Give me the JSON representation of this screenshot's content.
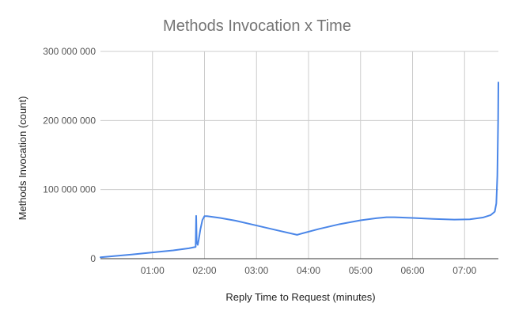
{
  "chart_data": {
    "type": "line",
    "title": "Methods Invocation x Time",
    "xlabel": "Reply Time to Request (minutes)",
    "ylabel": "Methods Invocation (count)",
    "x_unit": "minutes",
    "xlim": [
      0,
      7.65
    ],
    "ylim": [
      0,
      300000000
    ],
    "x_ticks": [
      {
        "value": 1,
        "label": "01:00"
      },
      {
        "value": 2,
        "label": "02:00"
      },
      {
        "value": 3,
        "label": "03:00"
      },
      {
        "value": 4,
        "label": "04:00"
      },
      {
        "value": 5,
        "label": "05:00"
      },
      {
        "value": 6,
        "label": "06:00"
      },
      {
        "value": 7,
        "label": "07:00"
      }
    ],
    "y_ticks": [
      {
        "value": 0,
        "label": "0"
      },
      {
        "value": 100000000,
        "label": "100 000 000"
      },
      {
        "value": 200000000,
        "label": "200 000 000"
      },
      {
        "value": 300000000,
        "label": "300 000 000"
      }
    ],
    "grid": true,
    "legend": "none",
    "series_color": "#4a86e8",
    "series": [
      {
        "x": [
          0.0,
          0.3,
          0.6,
          1.0,
          1.4,
          1.7,
          1.83,
          1.84,
          1.85,
          1.87,
          1.89,
          1.92,
          1.96,
          2.0,
          2.05,
          2.3,
          2.6,
          3.0,
          3.4,
          3.78,
          3.85,
          4.2,
          4.6,
          5.0,
          5.3,
          5.5,
          5.65,
          6.0,
          6.4,
          6.8,
          7.1,
          7.35,
          7.5,
          7.58,
          7.61,
          7.63,
          7.645,
          7.65
        ],
        "y": [
          2000000,
          4000000,
          6000000,
          9000000,
          12000000,
          15000000,
          17000000,
          62000000,
          24000000,
          20000000,
          28000000,
          42000000,
          56000000,
          61500000,
          61500000,
          59000000,
          55000000,
          48000000,
          41000000,
          34500000,
          36000000,
          43000000,
          50000000,
          55500000,
          58500000,
          60000000,
          60000000,
          59000000,
          57500000,
          56500000,
          57000000,
          59500000,
          63000000,
          68000000,
          80000000,
          120000000,
          200000000,
          255000000
        ]
      }
    ]
  }
}
